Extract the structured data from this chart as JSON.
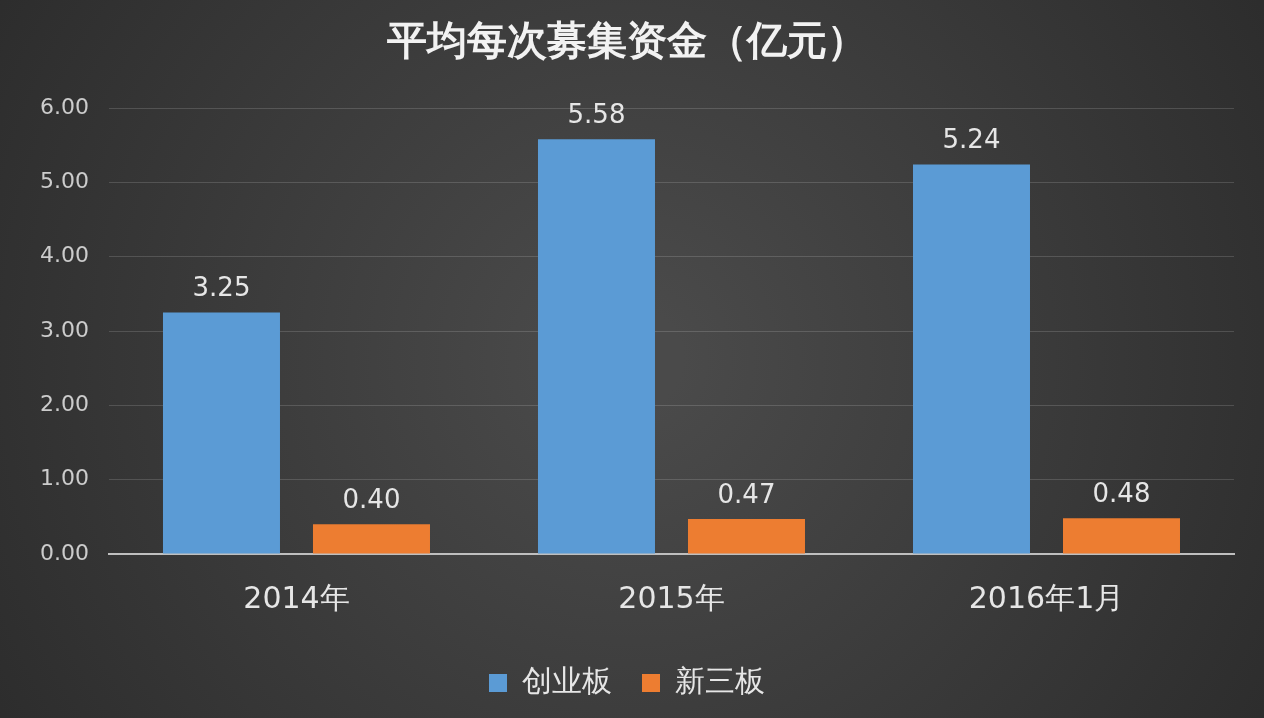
{
  "chart_data": {
    "type": "bar",
    "title": "平均每次募集资金（亿元）",
    "categories": [
      "2014年",
      "2015年",
      "2016年1月"
    ],
    "series": [
      {
        "name": "创业板",
        "color": "#5b9bd5",
        "values": [
          3.25,
          5.58,
          5.24
        ],
        "value_labels": [
          "3.25",
          "5.58",
          "5.24"
        ]
      },
      {
        "name": "新三板",
        "color": "#ed7d31",
        "values": [
          0.4,
          0.47,
          0.48
        ],
        "value_labels": [
          "0.40",
          "0.47",
          "0.48"
        ]
      }
    ],
    "ylim": [
      0,
      6
    ],
    "yticks": [
      {
        "value": 0,
        "label": "0.00"
      },
      {
        "value": 1,
        "label": "1.00"
      },
      {
        "value": 2,
        "label": "2.00"
      },
      {
        "value": 3,
        "label": "3.00"
      },
      {
        "value": 4,
        "label": "4.00"
      },
      {
        "value": 5,
        "label": "5.00"
      },
      {
        "value": 6,
        "label": "6.00"
      }
    ],
    "grid": "y",
    "legend": "bottom"
  }
}
